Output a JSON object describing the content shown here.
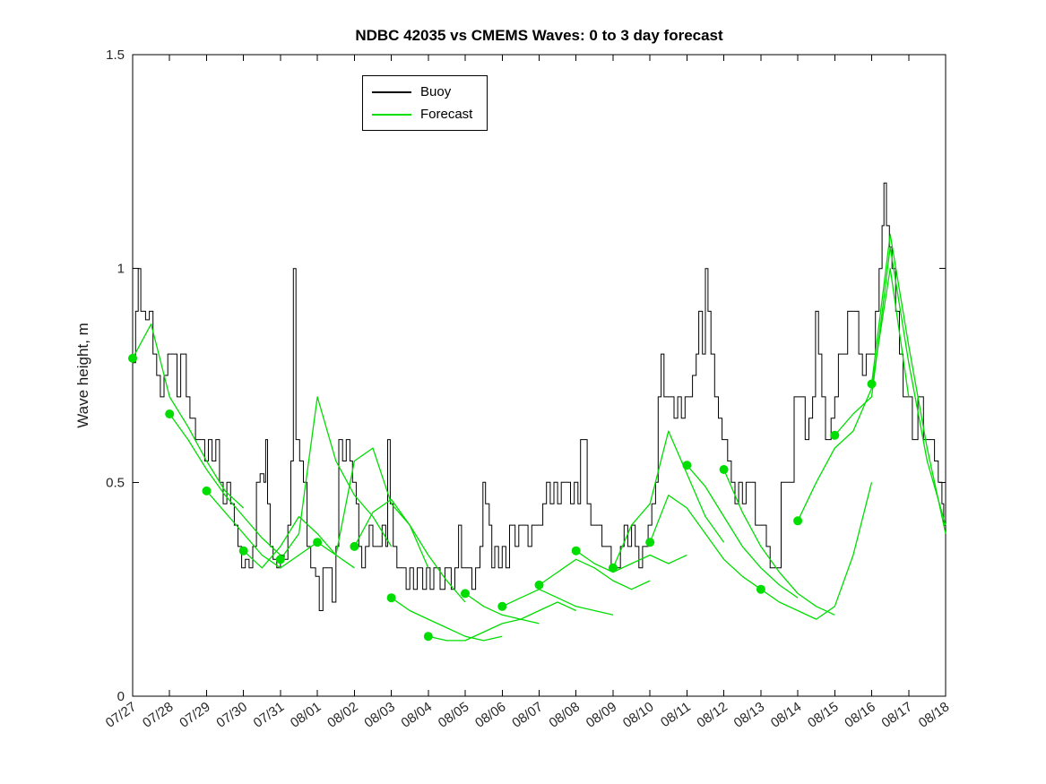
{
  "chart_data": {
    "type": "line",
    "title": "NDBC 42035 vs CMEMS Waves: 0 to 3 day forecast",
    "xlabel": "",
    "ylabel": "Wave height, m",
    "xlim": [
      0,
      22
    ],
    "ylim": [
      0,
      1.5
    ],
    "yticks": [
      0,
      0.5,
      1,
      1.5
    ],
    "ytick_labels": [
      "0",
      "0.5",
      "1",
      "1.5"
    ],
    "xtick_labels": [
      "07/27",
      "07/28",
      "07/29",
      "07/30",
      "07/31",
      "08/01",
      "08/02",
      "08/03",
      "08/04",
      "08/05",
      "08/06",
      "08/07",
      "08/08",
      "08/09",
      "08/10",
      "08/11",
      "08/12",
      "08/13",
      "08/14",
      "08/15",
      "08/16",
      "08/17",
      "08/18"
    ],
    "grid": false,
    "legend_position": "top-center-left",
    "legend_entries": [
      {
        "label": "Buoy",
        "color": "#000000"
      },
      {
        "label": "Forecast",
        "color": "#00dd00"
      }
    ],
    "series_colors": {
      "buoy": "#000000",
      "forecast": "#00dd00"
    },
    "buoy": {
      "name": "Buoy",
      "style": "step",
      "units": "m",
      "steps": [
        [
          0,
          0.78
        ],
        [
          0.08,
          0.9
        ],
        [
          0.15,
          1.0
        ],
        [
          0.22,
          0.9
        ],
        [
          0.35,
          0.88
        ],
        [
          0.45,
          0.9
        ],
        [
          0.55,
          0.8
        ],
        [
          0.65,
          0.75
        ],
        [
          0.75,
          0.7
        ],
        [
          0.85,
          0.75
        ],
        [
          0.95,
          0.8
        ],
        [
          1.1,
          0.8
        ],
        [
          1.2,
          0.7
        ],
        [
          1.3,
          0.8
        ],
        [
          1.45,
          0.7
        ],
        [
          1.55,
          0.65
        ],
        [
          1.7,
          0.6
        ],
        [
          1.85,
          0.6
        ],
        [
          1.95,
          0.55
        ],
        [
          2.05,
          0.6
        ],
        [
          2.15,
          0.55
        ],
        [
          2.25,
          0.6
        ],
        [
          2.35,
          0.5
        ],
        [
          2.45,
          0.45
        ],
        [
          2.55,
          0.5
        ],
        [
          2.65,
          0.45
        ],
        [
          2.75,
          0.4
        ],
        [
          2.85,
          0.35
        ],
        [
          2.95,
          0.3
        ],
        [
          3.05,
          0.32
        ],
        [
          3.15,
          0.3
        ],
        [
          3.25,
          0.35
        ],
        [
          3.35,
          0.5
        ],
        [
          3.45,
          0.52
        ],
        [
          3.55,
          0.5
        ],
        [
          3.6,
          0.6
        ],
        [
          3.65,
          0.45
        ],
        [
          3.72,
          0.35
        ],
        [
          3.8,
          0.32
        ],
        [
          3.9,
          0.3
        ],
        [
          4.0,
          0.33
        ],
        [
          4.1,
          0.32
        ],
        [
          4.2,
          0.4
        ],
        [
          4.28,
          0.55
        ],
        [
          4.35,
          1.0
        ],
        [
          4.42,
          0.6
        ],
        [
          4.52,
          0.55
        ],
        [
          4.62,
          0.5
        ],
        [
          4.72,
          0.35
        ],
        [
          4.82,
          0.3
        ],
        [
          4.95,
          0.28
        ],
        [
          5.05,
          0.2
        ],
        [
          5.15,
          0.3
        ],
        [
          5.3,
          0.3
        ],
        [
          5.4,
          0.22
        ],
        [
          5.5,
          0.35
        ],
        [
          5.58,
          0.6
        ],
        [
          5.68,
          0.55
        ],
        [
          5.78,
          0.6
        ],
        [
          5.88,
          0.55
        ],
        [
          5.95,
          0.5
        ],
        [
          6.05,
          0.45
        ],
        [
          6.12,
          0.35
        ],
        [
          6.2,
          0.3
        ],
        [
          6.3,
          0.35
        ],
        [
          6.4,
          0.4
        ],
        [
          6.5,
          0.35
        ],
        [
          6.65,
          0.35
        ],
        [
          6.75,
          0.4
        ],
        [
          6.85,
          0.35
        ],
        [
          6.9,
          0.6
        ],
        [
          6.97,
          0.45
        ],
        [
          7.05,
          0.35
        ],
        [
          7.15,
          0.3
        ],
        [
          7.3,
          0.3
        ],
        [
          7.4,
          0.25
        ],
        [
          7.5,
          0.3
        ],
        [
          7.6,
          0.25
        ],
        [
          7.7,
          0.3
        ],
        [
          7.85,
          0.25
        ],
        [
          7.95,
          0.3
        ],
        [
          8.05,
          0.25
        ],
        [
          8.15,
          0.3
        ],
        [
          8.32,
          0.25
        ],
        [
          8.45,
          0.3
        ],
        [
          8.62,
          0.25
        ],
        [
          8.72,
          0.3
        ],
        [
          8.82,
          0.4
        ],
        [
          8.9,
          0.3
        ],
        [
          9.05,
          0.3
        ],
        [
          9.18,
          0.25
        ],
        [
          9.28,
          0.3
        ],
        [
          9.4,
          0.35
        ],
        [
          9.48,
          0.5
        ],
        [
          9.55,
          0.45
        ],
        [
          9.65,
          0.4
        ],
        [
          9.72,
          0.3
        ],
        [
          9.8,
          0.35
        ],
        [
          9.9,
          0.3
        ],
        [
          10.0,
          0.35
        ],
        [
          10.1,
          0.3
        ],
        [
          10.2,
          0.4
        ],
        [
          10.35,
          0.35
        ],
        [
          10.45,
          0.4
        ],
        [
          10.6,
          0.4
        ],
        [
          10.7,
          0.35
        ],
        [
          10.8,
          0.4
        ],
        [
          11.0,
          0.4
        ],
        [
          11.1,
          0.45
        ],
        [
          11.2,
          0.5
        ],
        [
          11.3,
          0.45
        ],
        [
          11.4,
          0.5
        ],
        [
          11.5,
          0.45
        ],
        [
          11.6,
          0.5
        ],
        [
          11.75,
          0.5
        ],
        [
          11.85,
          0.45
        ],
        [
          11.95,
          0.5
        ],
        [
          12.05,
          0.45
        ],
        [
          12.12,
          0.6
        ],
        [
          12.22,
          0.6
        ],
        [
          12.3,
          0.45
        ],
        [
          12.4,
          0.4
        ],
        [
          12.55,
          0.4
        ],
        [
          12.7,
          0.35
        ],
        [
          12.85,
          0.35
        ],
        [
          12.95,
          0.3
        ],
        [
          13.1,
          0.3
        ],
        [
          13.2,
          0.35
        ],
        [
          13.3,
          0.4
        ],
        [
          13.4,
          0.35
        ],
        [
          13.5,
          0.4
        ],
        [
          13.6,
          0.35
        ],
        [
          13.7,
          0.3
        ],
        [
          13.8,
          0.35
        ],
        [
          13.95,
          0.4
        ],
        [
          14.05,
          0.45
        ],
        [
          14.15,
          0.5
        ],
        [
          14.22,
          0.7
        ],
        [
          14.3,
          0.8
        ],
        [
          14.38,
          0.7
        ],
        [
          14.55,
          0.7
        ],
        [
          14.65,
          0.65
        ],
        [
          14.75,
          0.7
        ],
        [
          14.85,
          0.65
        ],
        [
          14.95,
          0.7
        ],
        [
          15.05,
          0.7
        ],
        [
          15.15,
          0.75
        ],
        [
          15.25,
          0.8
        ],
        [
          15.32,
          0.9
        ],
        [
          15.42,
          0.8
        ],
        [
          15.5,
          1.0
        ],
        [
          15.57,
          0.9
        ],
        [
          15.65,
          0.8
        ],
        [
          15.75,
          0.7
        ],
        [
          15.85,
          0.65
        ],
        [
          15.95,
          0.6
        ],
        [
          16.1,
          0.55
        ],
        [
          16.2,
          0.5
        ],
        [
          16.3,
          0.45
        ],
        [
          16.4,
          0.5
        ],
        [
          16.5,
          0.45
        ],
        [
          16.6,
          0.5
        ],
        [
          16.75,
          0.5
        ],
        [
          16.85,
          0.4
        ],
        [
          17.05,
          0.4
        ],
        [
          17.15,
          0.35
        ],
        [
          17.25,
          0.3
        ],
        [
          17.45,
          0.3
        ],
        [
          17.55,
          0.5
        ],
        [
          17.8,
          0.5
        ],
        [
          17.9,
          0.7
        ],
        [
          18.1,
          0.7
        ],
        [
          18.2,
          0.6
        ],
        [
          18.3,
          0.65
        ],
        [
          18.4,
          0.7
        ],
        [
          18.48,
          0.9
        ],
        [
          18.56,
          0.8
        ],
        [
          18.65,
          0.7
        ],
        [
          18.75,
          0.6
        ],
        [
          18.9,
          0.65
        ],
        [
          19.0,
          0.7
        ],
        [
          19.1,
          0.8
        ],
        [
          19.25,
          0.8
        ],
        [
          19.35,
          0.9
        ],
        [
          19.55,
          0.9
        ],
        [
          19.65,
          0.8
        ],
        [
          19.75,
          0.75
        ],
        [
          19.85,
          0.8
        ],
        [
          20.0,
          0.8
        ],
        [
          20.1,
          0.9
        ],
        [
          20.2,
          1.0
        ],
        [
          20.28,
          1.1
        ],
        [
          20.33,
          1.2
        ],
        [
          20.4,
          1.1
        ],
        [
          20.48,
          1.05
        ],
        [
          20.55,
          1.0
        ],
        [
          20.65,
          0.9
        ],
        [
          20.75,
          0.8
        ],
        [
          20.85,
          0.7
        ],
        [
          21.0,
          0.7
        ],
        [
          21.1,
          0.6
        ],
        [
          21.25,
          0.7
        ],
        [
          21.4,
          0.6
        ],
        [
          21.6,
          0.6
        ],
        [
          21.7,
          0.55
        ],
        [
          21.8,
          0.5
        ],
        [
          21.9,
          0.45
        ],
        [
          21.95,
          0.4
        ],
        [
          22.0,
          0.35
        ]
      ]
    },
    "forecasts": [
      {
        "x0": 0,
        "dx": 0.5,
        "y": [
          0.79,
          0.87,
          0.7,
          0.63,
          0.55,
          0.48,
          0.44
        ]
      },
      {
        "x0": 1,
        "dx": 0.5,
        "y": [
          0.66,
          0.6,
          0.53,
          0.47,
          0.42,
          0.37,
          0.33
        ]
      },
      {
        "x0": 2,
        "dx": 0.5,
        "y": [
          0.48,
          0.43,
          0.38,
          0.33,
          0.3,
          0.33,
          0.36
        ]
      },
      {
        "x0": 3,
        "dx": 0.5,
        "y": [
          0.34,
          0.3,
          0.35,
          0.42,
          0.38,
          0.33,
          0.3
        ]
      },
      {
        "x0": 4,
        "dx": 0.5,
        "y": [
          0.32,
          0.38,
          0.7,
          0.55,
          0.47,
          0.42,
          0.35
        ]
      },
      {
        "x0": 5,
        "dx": 0.5,
        "y": [
          0.36,
          0.33,
          0.55,
          0.58,
          0.45,
          0.4,
          0.3
        ]
      },
      {
        "x0": 6,
        "dx": 0.5,
        "y": [
          0.35,
          0.43,
          0.46,
          0.4,
          0.33,
          0.27,
          0.22
        ]
      },
      {
        "x0": 7,
        "dx": 0.5,
        "y": [
          0.23,
          0.2,
          0.18,
          0.16,
          0.14,
          0.13,
          0.14
        ]
      },
      {
        "x0": 8,
        "dx": 0.5,
        "y": [
          0.14,
          0.13,
          0.13,
          0.15,
          0.17,
          0.18,
          0.17
        ]
      },
      {
        "x0": 9,
        "dx": 0.5,
        "y": [
          0.24,
          0.21,
          0.19,
          0.18,
          0.2,
          0.22,
          0.2
        ]
      },
      {
        "x0": 10,
        "dx": 0.5,
        "y": [
          0.21,
          0.23,
          0.25,
          0.23,
          0.21,
          0.2,
          0.19
        ]
      },
      {
        "x0": 11,
        "dx": 0.5,
        "y": [
          0.26,
          0.29,
          0.32,
          0.3,
          0.27,
          0.25,
          0.27
        ]
      },
      {
        "x0": 12,
        "dx": 0.5,
        "y": [
          0.34,
          0.31,
          0.29,
          0.31,
          0.33,
          0.31,
          0.33
        ]
      },
      {
        "x0": 13,
        "dx": 0.5,
        "y": [
          0.3,
          0.4,
          0.45,
          0.62,
          0.52,
          0.42,
          0.36
        ]
      },
      {
        "x0": 14,
        "dx": 0.5,
        "y": [
          0.36,
          0.47,
          0.44,
          0.38,
          0.32,
          0.28,
          0.25
        ]
      },
      {
        "x0": 15,
        "dx": 0.5,
        "y": [
          0.54,
          0.49,
          0.42,
          0.35,
          0.3,
          0.26,
          0.23
        ]
      },
      {
        "x0": 16,
        "dx": 0.5,
        "y": [
          0.53,
          0.43,
          0.35,
          0.29,
          0.24,
          0.21,
          0.19
        ]
      },
      {
        "x0": 17,
        "dx": 0.5,
        "y": [
          0.25,
          0.22,
          0.2,
          0.18,
          0.21,
          0.33,
          0.5
        ]
      },
      {
        "x0": 18,
        "dx": 0.5,
        "y": [
          0.41,
          0.5,
          0.58,
          0.62,
          0.72,
          1.0,
          0.7
        ]
      },
      {
        "x0": 19,
        "dx": 0.5,
        "y": [
          0.61,
          0.66,
          0.7,
          1.05,
          0.78,
          0.55,
          0.4
        ]
      },
      {
        "x0": 20,
        "dx": 0.5,
        "y": [
          0.73,
          1.08,
          0.82,
          0.58,
          0.38
        ]
      }
    ],
    "marker": {
      "shape": "circle",
      "radius": 5,
      "meaning": "forecast start point"
    }
  }
}
